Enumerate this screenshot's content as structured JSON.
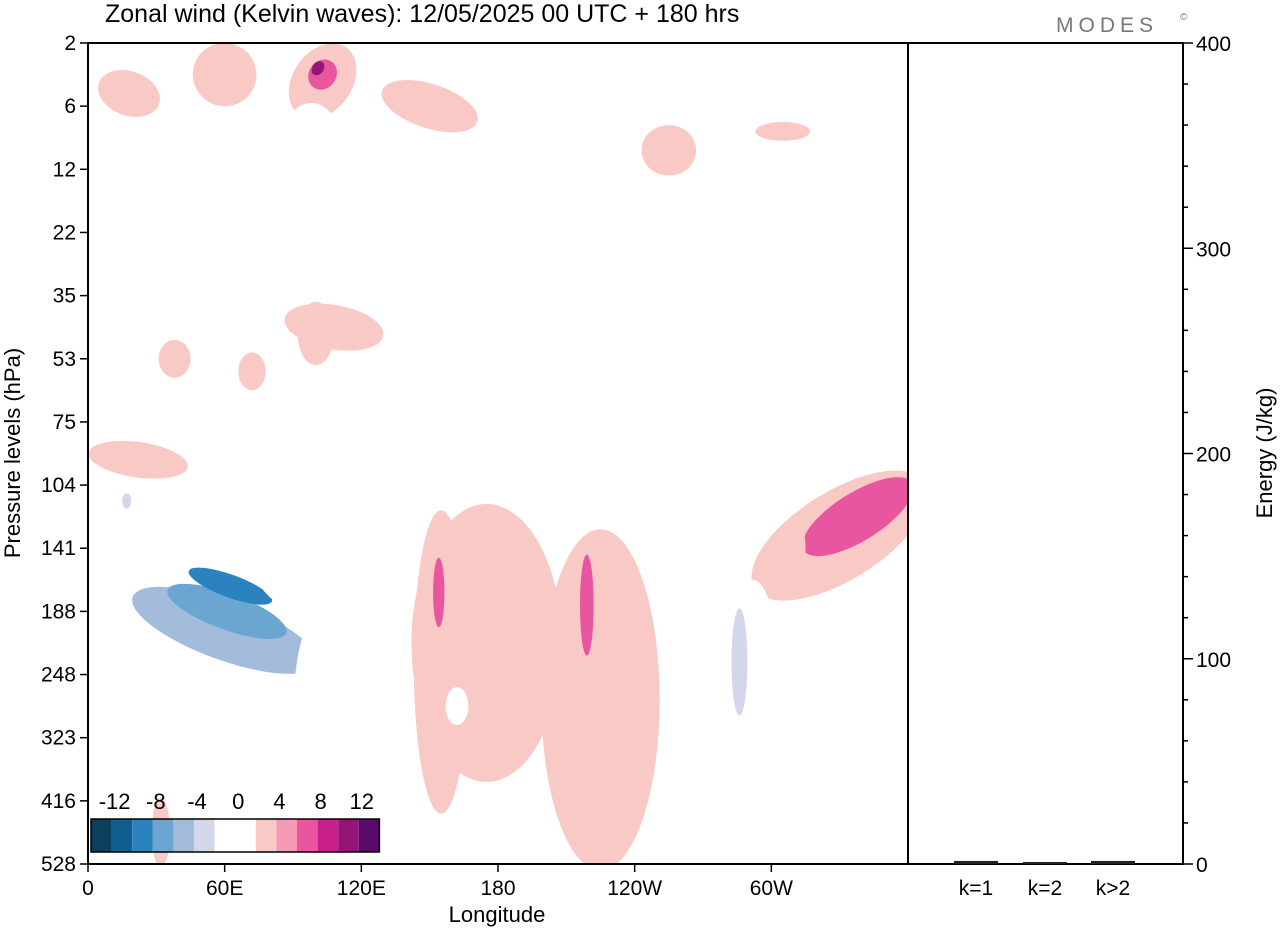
{
  "chart_data": {
    "type": "heatmap",
    "title": "Zonal wind (Kelvin waves):  12/05/2025  00 UTC  + 180 hrs",
    "logo": "MODES",
    "logo_mark": "©",
    "xlabel": "Longitude",
    "ylabel": "Pressure levels (hPa)",
    "y2label": "Energy (J/kg)",
    "x_ticks": [
      "0",
      "60E",
      "120E",
      "180",
      "120W",
      "60W"
    ],
    "x_tick_values": [
      0,
      60,
      120,
      180,
      240,
      300
    ],
    "xlim": [
      0,
      360
    ],
    "y_ticks": [
      "2",
      "6",
      "12",
      "22",
      "35",
      "53",
      "75",
      "104",
      "141",
      "188",
      "248",
      "323",
      "416",
      "528"
    ],
    "y2_ticks": [
      "0",
      "100",
      "200",
      "300",
      "400"
    ],
    "y2_tick_values": [
      0,
      100,
      200,
      300,
      400
    ],
    "y2lim": [
      0,
      400
    ],
    "energy_categories": [
      "k=1",
      "k=2",
      "k>2"
    ],
    "energy_values": [
      1,
      0.5,
      1
    ],
    "colorbar": {
      "labels": [
        "-12",
        "-8",
        "-4",
        "0",
        "4",
        "8",
        "12"
      ],
      "colors": [
        "#0b3f5d",
        "#125e90",
        "#2a82be",
        "#6aa6d0",
        "#a4bcdc",
        "#d3d7ea",
        "#ffffff",
        "#ffffff",
        "#f9c9c6",
        "#f59ab7",
        "#e8569f",
        "#c81f8a",
        "#951478",
        "#5a0a6a"
      ]
    },
    "regions": [
      {
        "name": "easterly-max-65E-141hPa",
        "c": -6,
        "lon": 60,
        "lev": 9.3,
        "rx": 13,
        "ry": 1.55,
        "rot": -70
      },
      {
        "name": "easterly-core-65E",
        "c": -8,
        "lon": 61,
        "lev": 9.0,
        "rx": 8,
        "ry": 1.0,
        "rot": -70
      },
      {
        "name": "easterly-core-65E-inner",
        "c": -10,
        "lon": 62.5,
        "lev": 8.6,
        "rx": 5,
        "ry": 0.7,
        "rot": -70
      },
      {
        "name": "easterly-band-75hPa",
        "c": -2,
        "lon": 40,
        "lev": 7.0,
        "rx": 42,
        "ry": 0.28,
        "rot": 12
      },
      {
        "name": "easterly-band-75hPa-west",
        "c": -2,
        "lon": 12,
        "lev": 7.5,
        "rx": 12,
        "ry": 0.45,
        "rot": 0
      },
      {
        "name": "easterly-spot-75hPa",
        "c": -4,
        "lon": 17,
        "lev": 7.25,
        "rx": 2,
        "ry": 0.12,
        "rot": 0
      },
      {
        "name": "easterly-tongue-95E",
        "c": -2,
        "lon": 100,
        "lev": 10.7,
        "rx": 10,
        "ry": 1.6,
        "rot": 0
      },
      {
        "name": "easterly-upper-95E",
        "c": -2,
        "lon": 95,
        "lev": 8.2,
        "rx": 22,
        "ry": 0.9,
        "rot": -50
      },
      {
        "name": "westerly-185W-main",
        "c": 2,
        "lon": 175,
        "lev": 9.5,
        "rx": 33,
        "ry": 2.2,
        "rot": 0
      },
      {
        "name": "westerly-200W-main",
        "c": 2,
        "lon": 225,
        "lev": 10.4,
        "rx": 26,
        "ry": 2.7,
        "rot": 0
      },
      {
        "name": "westerly-150E-tower",
        "c": 2,
        "lon": 155,
        "lev": 9.8,
        "rx": 12,
        "ry": 2.4,
        "rot": 0
      },
      {
        "name": "westerly-peak-150E",
        "c": 6,
        "lon": 154,
        "lev": 8.7,
        "rx": 2.5,
        "ry": 0.55,
        "rot": 0
      },
      {
        "name": "westerly-peak-215",
        "c": 6,
        "lon": 219,
        "lev": 8.9,
        "rx": 3,
        "ry": 0.8,
        "rot": 0
      },
      {
        "name": "westerly-jet-80W",
        "c": 2,
        "lon": 330,
        "lev": 7.8,
        "rx": 44,
        "ry": 0.7,
        "rot": -32
      },
      {
        "name": "westerly-jet-80W-core",
        "c": 6,
        "lon": 338,
        "lev": 7.5,
        "rx": 28,
        "ry": 0.38,
        "rot": -32
      },
      {
        "name": "easterly-70W",
        "c": -2,
        "lon": 292,
        "lev": 10.6,
        "rx": 13,
        "ry": 2.1,
        "rot": 0
      },
      {
        "name": "easterly-70W-core",
        "c": -4,
        "lon": 286,
        "lev": 9.8,
        "rx": 3.5,
        "ry": 0.85,
        "rot": 0
      },
      {
        "name": "easterly-east-edge",
        "c": -2,
        "lon": 350,
        "lev": 11.3,
        "rx": 7,
        "ry": 1.5,
        "rot": 0
      },
      {
        "name": "westerly-lower-35E",
        "c": 2,
        "lon": 32,
        "lev": 12.5,
        "rx": 4,
        "ry": 0.55,
        "rot": 0
      },
      {
        "name": "easterly-lower-0",
        "c": -2,
        "lon": 4,
        "lev": 12.6,
        "rx": 4,
        "ry": 0.8,
        "rot": 0
      },
      {
        "name": "westerly-upper-0",
        "c": 2,
        "lon": 22,
        "lev": 6.6,
        "rx": 22,
        "ry": 0.28,
        "rot": 8
      },
      {
        "name": "westerly-upper-105E",
        "c": 2,
        "lon": 108,
        "lev": 4.5,
        "rx": 22,
        "ry": 0.35,
        "rot": 10
      },
      {
        "name": "westerly-upper-40E",
        "c": 2,
        "lon": 38,
        "lev": 5.0,
        "rx": 7,
        "ry": 0.3,
        "rot": 0
      },
      {
        "name": "westerly-upper-75E",
        "c": 2,
        "lon": 72,
        "lev": 5.2,
        "rx": 6,
        "ry": 0.3,
        "rot": 0
      },
      {
        "name": "easterly-upper-240",
        "c": -2,
        "lon": 245,
        "lev": 4.7,
        "rx": 6,
        "ry": 0.55,
        "rot": 0
      },
      {
        "name": "easterly-upper-330",
        "c": -2,
        "lon": 322,
        "lev": 4.5,
        "rx": 10,
        "ry": 0.45,
        "rot": 0
      },
      {
        "name": "easterly-mid-270",
        "c": -2,
        "lon": 255,
        "lev": 6.8,
        "rx": 5,
        "ry": 0.55,
        "rot": 0
      },
      {
        "name": "westerly-top-0",
        "c": 2,
        "lon": 18,
        "lev": 0.8,
        "rx": 14,
        "ry": 0.35,
        "rot": 20
      },
      {
        "name": "westerly-top-55E",
        "c": 2,
        "lon": 60,
        "lev": 0.5,
        "rx": 14,
        "ry": 0.5,
        "rot": 25
      },
      {
        "name": "westerly-top-100E",
        "c": 2,
        "lon": 103,
        "lev": 0.6,
        "rx": 13,
        "ry": 0.65,
        "rot": 35
      },
      {
        "name": "westerly-top-100E-core",
        "c": 6,
        "lon": 103,
        "lev": 0.5,
        "rx": 6,
        "ry": 0.25,
        "rot": 35
      },
      {
        "name": "westerly-top-100E-max",
        "c": 10,
        "lon": 101,
        "lev": 0.4,
        "rx": 2.5,
        "ry": 0.12,
        "rot": 35
      },
      {
        "name": "westerly-top-150E",
        "c": 2,
        "lon": 150,
        "lev": 1.0,
        "rx": 22,
        "ry": 0.35,
        "rot": 18
      },
      {
        "name": "westerly-top-250",
        "c": 2,
        "lon": 255,
        "lev": 1.7,
        "rx": 12,
        "ry": 0.4,
        "rot": 0
      },
      {
        "name": "westerly-top-305",
        "c": 2,
        "lon": 305,
        "lev": 1.4,
        "rx": 12,
        "ry": 0.15,
        "rot": 0
      },
      {
        "name": "easterly-top-75E",
        "c": -2,
        "lon": 76,
        "lev": 1.3,
        "rx": 8,
        "ry": 0.6,
        "rot": 0
      },
      {
        "name": "easterly-top-100E",
        "c": -2,
        "lon": 98,
        "lev": 1.5,
        "rx": 12,
        "ry": 0.55,
        "rot": 0
      },
      {
        "name": "easterly-top-30E",
        "c": -2,
        "lon": 30,
        "lev": 1.4,
        "rx": 14,
        "ry": 0.12,
        "rot": 0
      },
      {
        "name": "easterly-top-265",
        "c": -2,
        "lon": 258,
        "lev": 0.6,
        "rx": 8,
        "ry": 0.35,
        "rot": 0
      },
      {
        "name": "easterly-top-310",
        "c": -2,
        "lon": 313,
        "lev": 0.3,
        "rx": 16,
        "ry": 0.28,
        "rot": 0
      },
      {
        "name": "easterly-top-140E",
        "c": -2,
        "lon": 142,
        "lev": 2.0,
        "rx": 4,
        "ry": 0.7,
        "rot": 0
      },
      {
        "name": "westerly-mid-105E",
        "c": 2,
        "lon": 100,
        "lev": 4.6,
        "rx": 8,
        "ry": 0.5,
        "rot": 0
      },
      {
        "name": "easterly-bottom-160",
        "c": -2,
        "lon": 162,
        "lev": 10.5,
        "rx": 5,
        "ry": 0.3,
        "rot": 0
      },
      {
        "name": "westerly-spot-315",
        "c": 2,
        "lon": 313,
        "lev": 8.0,
        "rx": 2,
        "ry": 0.35,
        "rot": 0
      }
    ]
  }
}
